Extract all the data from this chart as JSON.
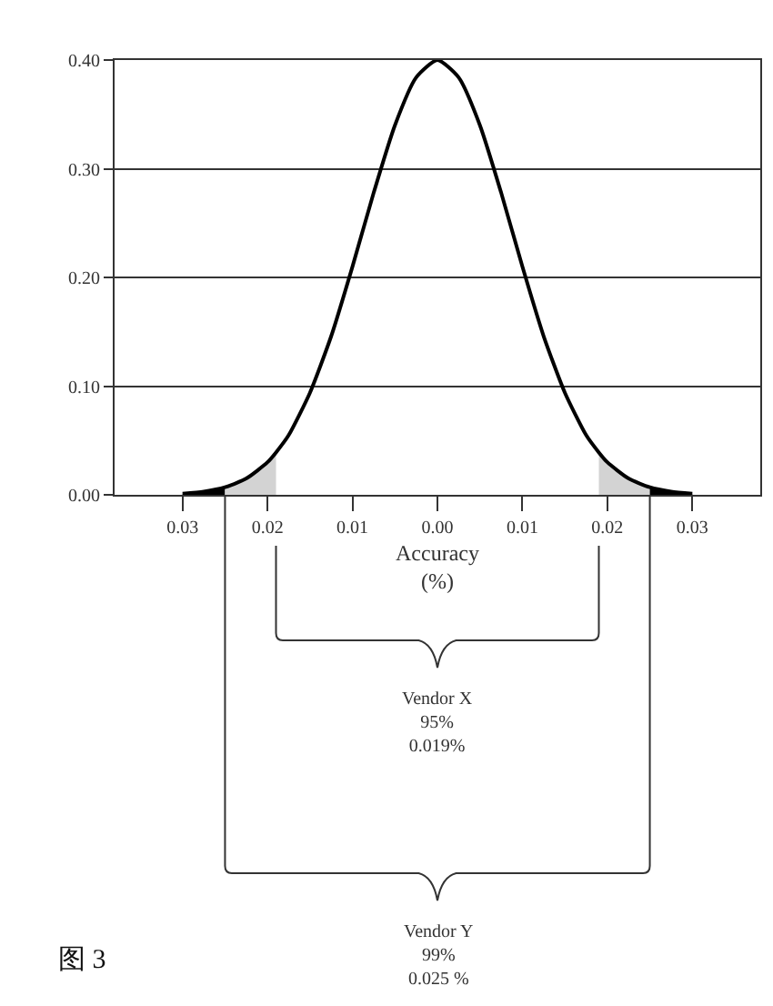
{
  "chart_data": {
    "type": "line",
    "xlabel": "Accuracy\n(%)",
    "xlim": [
      -0.038,
      0.038
    ],
    "xticks": [
      {
        "value": -0.03,
        "label": "0.03"
      },
      {
        "value": -0.02,
        "label": "0.02"
      },
      {
        "value": -0.01,
        "label": "0.01"
      },
      {
        "value": 0,
        "label": "0.00"
      },
      {
        "value": 0.01,
        "label": "0.01"
      },
      {
        "value": 0.02,
        "label": "0.02"
      },
      {
        "value": 0.03,
        "label": "0.03"
      }
    ],
    "ylim": [
      0,
      0.4
    ],
    "yticks": [
      {
        "value": 0,
        "label": "0.00"
      },
      {
        "value": 0.1,
        "label": "0.10"
      },
      {
        "value": 0.2,
        "label": "0.20"
      },
      {
        "value": 0.3,
        "label": "0.30"
      },
      {
        "value": 0.4,
        "label": "0.40"
      }
    ],
    "grid": "y",
    "marker": "none",
    "line_style": "solid",
    "series": [
      {
        "type": "area",
        "color": "#000000",
        "x": [
          -0.03,
          -0.0275,
          -0.025
        ],
        "values": [
          0.001,
          0.003,
          0.007
        ]
      },
      {
        "type": "area",
        "color": "#d3d3d3",
        "x": [
          -0.025,
          -0.0225,
          -0.02,
          -0.019
        ],
        "values": [
          0.007,
          0.015,
          0.03,
          0.039
        ]
      },
      {
        "type": "area",
        "color": "#d3d3d3",
        "x": [
          0.019,
          0.02,
          0.0225,
          0.025
        ],
        "values": [
          0.039,
          0.03,
          0.015,
          0.007
        ]
      },
      {
        "type": "area",
        "color": "#000000",
        "x": [
          0.025,
          0.0275,
          0.03
        ],
        "values": [
          0.007,
          0.003,
          0.001
        ]
      },
      {
        "color": "#000000",
        "x": [
          -0.03,
          -0.0275,
          -0.025,
          -0.0225,
          -0.02,
          -0.019,
          -0.0175,
          -0.015,
          -0.0125,
          -0.01,
          -0.0075,
          -0.005,
          -0.0025,
          0,
          0.0025,
          0.005,
          0.0075,
          0.01,
          0.0125,
          0.015,
          0.0175,
          0.019,
          0.02,
          0.0225,
          0.025,
          0.0275,
          0.03
        ],
        "values": [
          0.001,
          0.003,
          0.007,
          0.015,
          0.03,
          0.039,
          0.055,
          0.094,
          0.146,
          0.21,
          0.278,
          0.34,
          0.384,
          0.4,
          0.384,
          0.34,
          0.278,
          0.21,
          0.146,
          0.094,
          0.055,
          0.039,
          0.03,
          0.015,
          0.007,
          0.003,
          0.001
        ]
      }
    ],
    "annotations": [
      "Vendor X\n95%\n0.019%",
      "Vendor Y\n99%\n0.025 %",
      "图 3"
    ]
  }
}
